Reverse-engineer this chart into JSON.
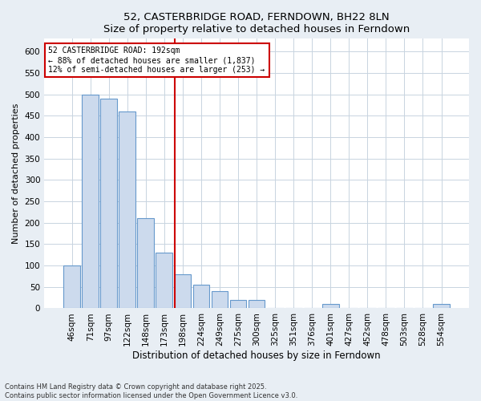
{
  "title_line1": "52, CASTERBRIDGE ROAD, FERNDOWN, BH22 8LN",
  "title_line2": "Size of property relative to detached houses in Ferndown",
  "xlabel": "Distribution of detached houses by size in Ferndown",
  "ylabel": "Number of detached properties",
  "bar_labels": [
    "46sqm",
    "71sqm",
    "97sqm",
    "122sqm",
    "148sqm",
    "173sqm",
    "198sqm",
    "224sqm",
    "249sqm",
    "275sqm",
    "300sqm",
    "325sqm",
    "351sqm",
    "376sqm",
    "401sqm",
    "427sqm",
    "452sqm",
    "478sqm",
    "503sqm",
    "528sqm",
    "554sqm"
  ],
  "bar_values": [
    100,
    500,
    490,
    460,
    210,
    130,
    80,
    55,
    40,
    20,
    20,
    0,
    0,
    0,
    10,
    0,
    0,
    0,
    0,
    0,
    10
  ],
  "bar_color": "#ccdaed",
  "bar_edgecolor": "#6699cc",
  "marker_index": 6,
  "marker_color": "#cc0000",
  "ylim": [
    0,
    630
  ],
  "yticks": [
    0,
    50,
    100,
    150,
    200,
    250,
    300,
    350,
    400,
    450,
    500,
    550,
    600
  ],
  "annotation_text_line1": "52 CASTERBRIDGE ROAD: 192sqm",
  "annotation_text_line2": "← 88% of detached houses are smaller (1,837)",
  "annotation_text_line3": "12% of semi-detached houses are larger (253) →",
  "footer_line1": "Contains HM Land Registry data © Crown copyright and database right 2025.",
  "footer_line2": "Contains public sector information licensed under the Open Government Licence v3.0.",
  "bg_color": "#e8eef4",
  "plot_bg_color": "#ffffff",
  "grid_color": "#c8d4e0",
  "title_fontsize": 9.5,
  "ylabel_fontsize": 8,
  "xlabel_fontsize": 8.5,
  "tick_fontsize": 7.5,
  "annotation_fontsize": 7,
  "footer_fontsize": 6
}
